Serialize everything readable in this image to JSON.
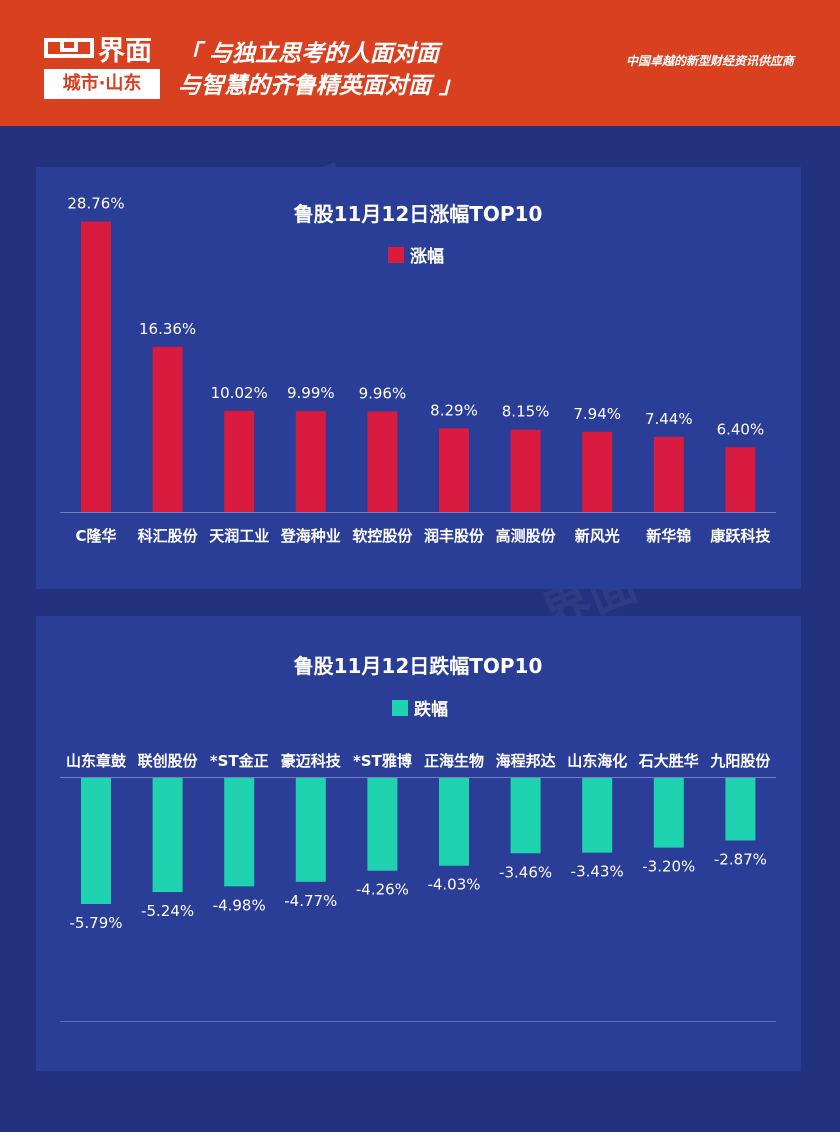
{
  "header": {
    "logo_brand": "界面",
    "logo_sub": "城市·山东",
    "slogan_line1": "「 与独立思考的人面对面",
    "slogan_line2": "与智慧的齐鲁精英面对面 」",
    "tagline": "中国卓越的新型财经资讯供应商"
  },
  "colors": {
    "header_bg": "#d8401f",
    "page_bg": "#22327f",
    "panel_bg": "#2a3d97",
    "gain_bar": "#d81b3e",
    "loss_bar": "#20d3b0"
  },
  "chart_data": [
    {
      "type": "bar",
      "title": "鲁股11月12日涨幅TOP10",
      "legend": "涨幅",
      "legend_placement": "top-center",
      "categories": [
        "C隆华",
        "科汇股份",
        "天润工业",
        "登海种业",
        "软控股份",
        "润丰股份",
        "高测股份",
        "新风光",
        "新华锦",
        "康跃科技"
      ],
      "values": [
        28.76,
        16.36,
        10.02,
        9.99,
        9.96,
        8.29,
        8.15,
        7.94,
        7.44,
        6.4
      ],
      "labels": [
        "28.76%",
        "16.36%",
        "10.02%",
        "9.99%",
        "9.96%",
        "8.29%",
        "8.15%",
        "7.94%",
        "7.44%",
        "6.40%"
      ],
      "ylim": [
        0,
        30
      ],
      "grid": false
    },
    {
      "type": "bar",
      "title": "鲁股11月12日跌幅TOP10",
      "legend": "跌幅",
      "legend_placement": "top-center",
      "categories": [
        "山东章鼓",
        "联创股份",
        "*ST金正",
        "豪迈科技",
        "*ST雅博",
        "正海生物",
        "海程邦达",
        "山东海化",
        "石大胜华",
        "九阳股份"
      ],
      "values": [
        -5.79,
        -5.24,
        -4.98,
        -4.77,
        -4.26,
        -4.03,
        -3.46,
        -3.43,
        -3.2,
        -2.87
      ],
      "labels": [
        "-5.79%",
        "-5.24%",
        "-4.98%",
        "-4.77%",
        "-4.26%",
        "-4.03%",
        "-3.46%",
        "-3.43%",
        "-3.20%",
        "-2.87%"
      ],
      "ylim": [
        -6,
        0
      ],
      "grid": false
    }
  ]
}
